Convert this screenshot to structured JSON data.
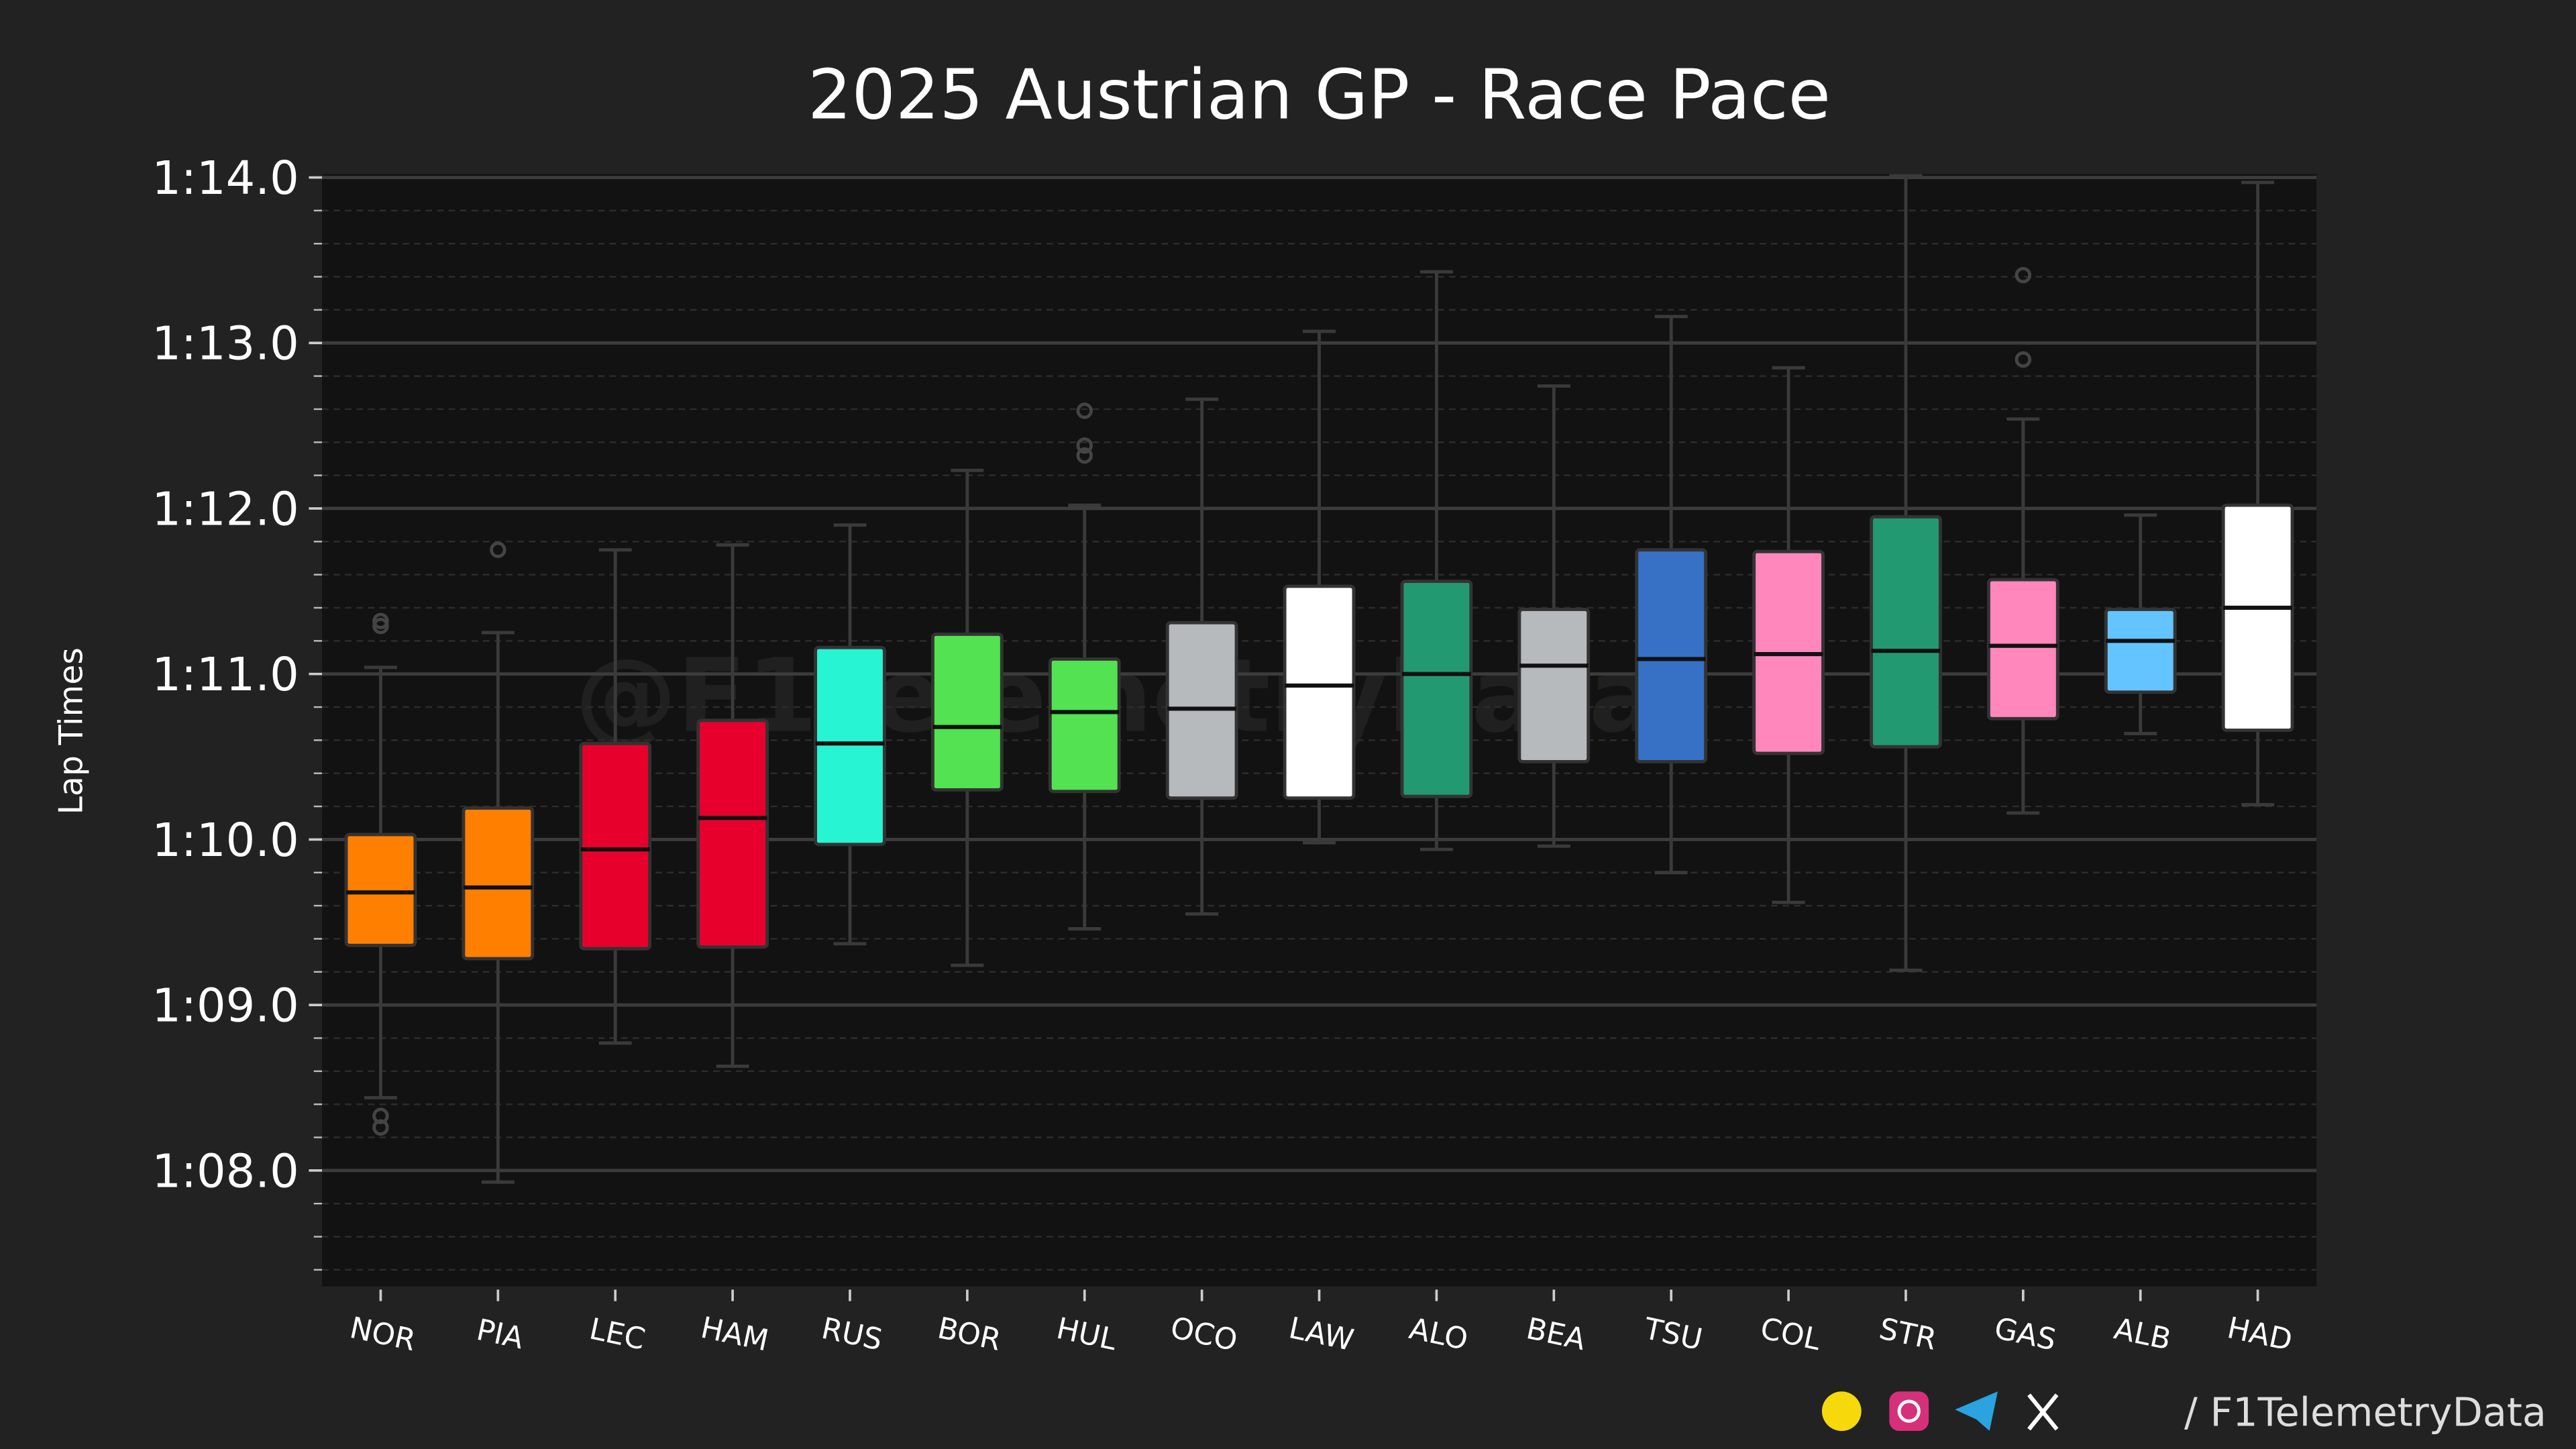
{
  "chart_data": {
    "type": "box",
    "title": "2025 Austrian GP - Race Pace",
    "y_label": "Lap Times",
    "watermark": "@F1TelemetryData",
    "footer": "/ F1TelemetryData",
    "ylim": [
      67.3,
      74.02
    ],
    "yticks": [
      {
        "value": 68,
        "label": "1:08.0"
      },
      {
        "value": 69,
        "label": "1:09.0"
      },
      {
        "value": 70,
        "label": "1:10.0"
      },
      {
        "value": 71,
        "label": "1:11.0"
      },
      {
        "value": 72,
        "label": "1:12.0"
      },
      {
        "value": 73,
        "label": "1:13.0"
      },
      {
        "value": 74,
        "label": "1:14.0"
      }
    ],
    "yminorticks": [
      67.4,
      67.6,
      67.8,
      68.2,
      68.4,
      68.6,
      68.8,
      69.2,
      69.4,
      69.6,
      69.8,
      70.2,
      70.4,
      70.6,
      70.8,
      71.2,
      71.4,
      71.6,
      71.8,
      72.2,
      72.4,
      72.6,
      72.8,
      73.2,
      73.4,
      73.6,
      73.8
    ],
    "grid": true,
    "categories": [
      "NOR",
      "PIA",
      "LEC",
      "HAM",
      "RUS",
      "BOR",
      "HUL",
      "OCO",
      "LAW",
      "ALO",
      "BEA",
      "TSU",
      "COL",
      "STR",
      "GAS",
      "ALB",
      "HAD"
    ],
    "boxes": [
      {
        "color": "#ff8000",
        "low": 68.44,
        "q1": 69.36,
        "median": 69.68,
        "q3": 70.03,
        "high": 71.04,
        "outliers": [
          71.32,
          71.29,
          68.33,
          68.26
        ]
      },
      {
        "color": "#ff8000",
        "low": 67.93,
        "q1": 69.28,
        "median": 69.71,
        "q3": 70.19,
        "high": 71.25,
        "outliers": [
          71.75
        ]
      },
      {
        "color": "#e8002d",
        "low": 68.77,
        "q1": 69.34,
        "median": 69.94,
        "q3": 70.58,
        "high": 71.75,
        "outliers": []
      },
      {
        "color": "#e8002d",
        "low": 68.63,
        "q1": 69.35,
        "median": 70.13,
        "q3": 70.72,
        "high": 71.78,
        "outliers": []
      },
      {
        "color": "#27f4d2",
        "low": 69.37,
        "q1": 69.97,
        "median": 70.58,
        "q3": 71.16,
        "high": 71.9,
        "outliers": []
      },
      {
        "color": "#52e252",
        "low": 69.24,
        "q1": 70.3,
        "median": 70.68,
        "q3": 71.24,
        "high": 72.23,
        "outliers": []
      },
      {
        "color": "#52e252",
        "low": 69.46,
        "q1": 70.29,
        "median": 70.77,
        "q3": 71.09,
        "high": 72.02,
        "outliers": [
          72.59,
          72.38,
          72.32
        ]
      },
      {
        "color": "#b6babd",
        "low": 69.55,
        "q1": 70.25,
        "median": 70.79,
        "q3": 71.31,
        "high": 72.66,
        "outliers": []
      },
      {
        "color": "#ffffff",
        "low": 69.98,
        "q1": 70.25,
        "median": 70.93,
        "q3": 71.53,
        "high": 73.07,
        "outliers": []
      },
      {
        "color": "#229971",
        "low": 69.94,
        "q1": 70.26,
        "median": 71.0,
        "q3": 71.56,
        "high": 73.43,
        "outliers": []
      },
      {
        "color": "#b6babd",
        "low": 69.96,
        "q1": 70.47,
        "median": 71.05,
        "q3": 71.39,
        "high": 72.74,
        "outliers": []
      },
      {
        "color": "#3671c6",
        "low": 69.8,
        "q1": 70.47,
        "median": 71.09,
        "q3": 71.75,
        "high": 73.16,
        "outliers": []
      },
      {
        "color": "#ff87bc",
        "low": 69.62,
        "q1": 70.52,
        "median": 71.12,
        "q3": 71.74,
        "high": 72.85,
        "outliers": []
      },
      {
        "color": "#229971",
        "low": 69.21,
        "q1": 70.56,
        "median": 71.14,
        "q3": 71.95,
        "high": 74.01,
        "outliers": []
      },
      {
        "color": "#ff87bc",
        "low": 70.16,
        "q1": 70.73,
        "median": 71.17,
        "q3": 71.57,
        "high": 72.54,
        "outliers": [
          73.41,
          72.9
        ]
      },
      {
        "color": "#64c4ff",
        "low": 70.64,
        "q1": 70.89,
        "median": 71.2,
        "q3": 71.39,
        "high": 71.96,
        "outliers": []
      },
      {
        "color": "#ffffff",
        "low": 70.21,
        "q1": 70.66,
        "median": 71.4,
        "q3": 72.02,
        "high": 73.97,
        "outliers": []
      }
    ]
  }
}
